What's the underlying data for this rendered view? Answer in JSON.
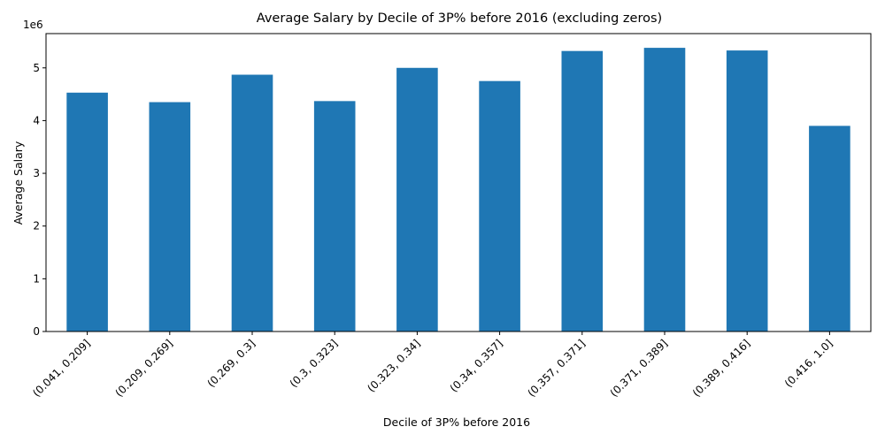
{
  "chart_data": {
    "type": "bar",
    "title": "Average Salary by Decile of 3P% before 2016 (excluding zeros)",
    "xlabel": "Decile of 3P% before 2016",
    "ylabel": "Average Salary",
    "y_offset_label": "1e6",
    "categories": [
      "(0.041, 0.209]",
      "(0.209, 0.269]",
      "(0.269, 0.3]",
      "(0.3, 0.323]",
      "(0.323, 0.34]",
      "(0.34, 0.357]",
      "(0.357, 0.371]",
      "(0.371, 0.389]",
      "(0.389, 0.416]",
      "(0.416, 1.0]"
    ],
    "values": [
      4.53,
      4.35,
      4.87,
      4.37,
      5.0,
      4.75,
      5.32,
      5.38,
      5.33,
      3.9
    ],
    "value_scale": 1000000,
    "ylim": [
      0,
      5.65
    ],
    "yticks": [
      0,
      1,
      2,
      3,
      4,
      5
    ],
    "grid": false,
    "bar_color": "#1f77b4"
  }
}
